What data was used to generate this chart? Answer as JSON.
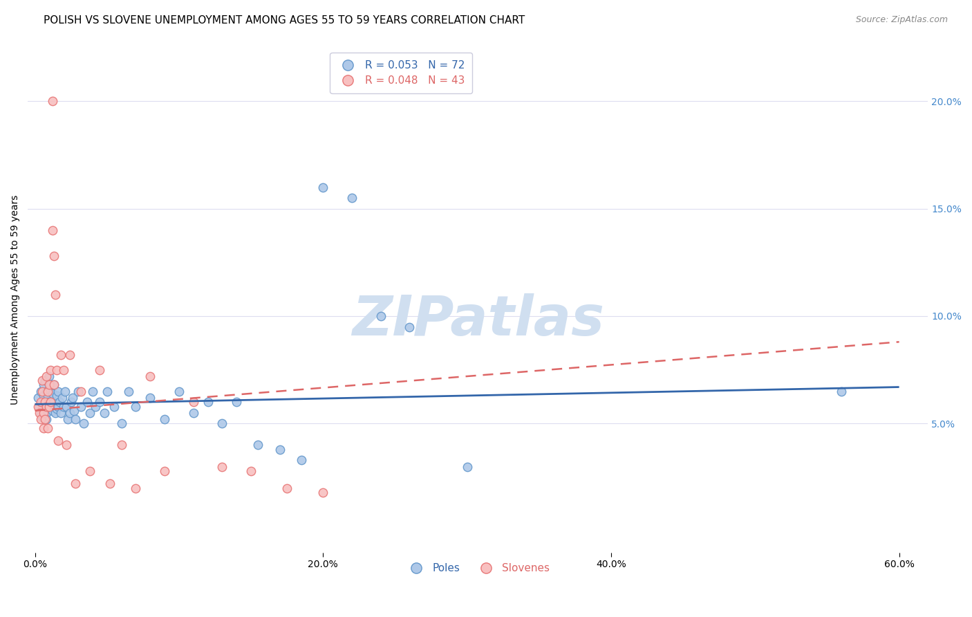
{
  "title": "POLISH VS SLOVENE UNEMPLOYMENT AMONG AGES 55 TO 59 YEARS CORRELATION CHART",
  "source": "Source: ZipAtlas.com",
  "ylabel": "Unemployment Among Ages 55 to 59 years",
  "legend_poles_r": "R = 0.053",
  "legend_poles_n": "N = 72",
  "legend_slovenes_r": "R = 0.048",
  "legend_slovenes_n": "N = 43",
  "legend_poles_label": "Poles",
  "legend_slovenes_label": "Slovenes",
  "poles_face_color": "#aec8e8",
  "poles_edge_color": "#6699cc",
  "slovenes_face_color": "#f8c0c0",
  "slovenes_edge_color": "#e87878",
  "poles_line_color": "#3366aa",
  "slovenes_line_color": "#dd6666",
  "background_color": "#ffffff",
  "grid_color": "#ddddf0",
  "watermark_color": "#d0dff0",
  "right_tick_color": "#4488cc",
  "poles_x": [
    0.002,
    0.003,
    0.004,
    0.004,
    0.005,
    0.005,
    0.005,
    0.006,
    0.006,
    0.007,
    0.007,
    0.008,
    0.008,
    0.008,
    0.009,
    0.009,
    0.01,
    0.01,
    0.01,
    0.011,
    0.011,
    0.012,
    0.012,
    0.013,
    0.013,
    0.014,
    0.015,
    0.015,
    0.016,
    0.016,
    0.017,
    0.018,
    0.019,
    0.02,
    0.021,
    0.022,
    0.023,
    0.024,
    0.025,
    0.026,
    0.027,
    0.028,
    0.03,
    0.032,
    0.034,
    0.036,
    0.038,
    0.04,
    0.042,
    0.045,
    0.048,
    0.05,
    0.055,
    0.06,
    0.065,
    0.07,
    0.08,
    0.09,
    0.1,
    0.11,
    0.12,
    0.13,
    0.14,
    0.155,
    0.17,
    0.185,
    0.2,
    0.22,
    0.24,
    0.26,
    0.3,
    0.56
  ],
  "poles_y": [
    0.062,
    0.058,
    0.065,
    0.055,
    0.06,
    0.057,
    0.053,
    0.068,
    0.063,
    0.07,
    0.06,
    0.065,
    0.055,
    0.052,
    0.063,
    0.058,
    0.072,
    0.066,
    0.06,
    0.068,
    0.058,
    0.064,
    0.056,
    0.068,
    0.06,
    0.055,
    0.063,
    0.057,
    0.065,
    0.058,
    0.06,
    0.055,
    0.062,
    0.058,
    0.065,
    0.058,
    0.052,
    0.055,
    0.06,
    0.062,
    0.056,
    0.052,
    0.065,
    0.058,
    0.05,
    0.06,
    0.055,
    0.065,
    0.058,
    0.06,
    0.055,
    0.065,
    0.058,
    0.05,
    0.065,
    0.058,
    0.062,
    0.052,
    0.065,
    0.055,
    0.06,
    0.05,
    0.06,
    0.04,
    0.038,
    0.033,
    0.16,
    0.155,
    0.1,
    0.095,
    0.03,
    0.065
  ],
  "slovenes_x": [
    0.002,
    0.003,
    0.004,
    0.004,
    0.005,
    0.005,
    0.006,
    0.006,
    0.007,
    0.007,
    0.008,
    0.008,
    0.009,
    0.009,
    0.01,
    0.01,
    0.011,
    0.011,
    0.012,
    0.012,
    0.013,
    0.013,
    0.014,
    0.015,
    0.016,
    0.018,
    0.02,
    0.022,
    0.024,
    0.028,
    0.032,
    0.038,
    0.045,
    0.052,
    0.06,
    0.07,
    0.08,
    0.09,
    0.11,
    0.13,
    0.15,
    0.175,
    0.2
  ],
  "slovenes_y": [
    0.058,
    0.055,
    0.06,
    0.052,
    0.07,
    0.065,
    0.055,
    0.048,
    0.06,
    0.052,
    0.072,
    0.058,
    0.065,
    0.048,
    0.068,
    0.058,
    0.075,
    0.06,
    0.2,
    0.14,
    0.068,
    0.128,
    0.11,
    0.075,
    0.042,
    0.082,
    0.075,
    0.04,
    0.082,
    0.022,
    0.065,
    0.028,
    0.075,
    0.022,
    0.04,
    0.02,
    0.072,
    0.028,
    0.06,
    0.03,
    0.028,
    0.02,
    0.018
  ],
  "poles_trend_x": [
    0.0,
    0.6
  ],
  "poles_trend_y": [
    0.059,
    0.067
  ],
  "slovenes_trend_x": [
    0.0,
    0.6
  ],
  "slovenes_trend_y": [
    0.056,
    0.088
  ],
  "xlim": [
    -0.005,
    0.62
  ],
  "ylim": [
    -0.01,
    0.225
  ],
  "xticks": [
    0.0,
    0.2,
    0.4,
    0.6
  ],
  "yticks": [
    0.05,
    0.1,
    0.15,
    0.2
  ],
  "title_fontsize": 11,
  "axis_label_fontsize": 10,
  "tick_fontsize": 10,
  "legend_fontsize": 11,
  "source_fontsize": 9
}
